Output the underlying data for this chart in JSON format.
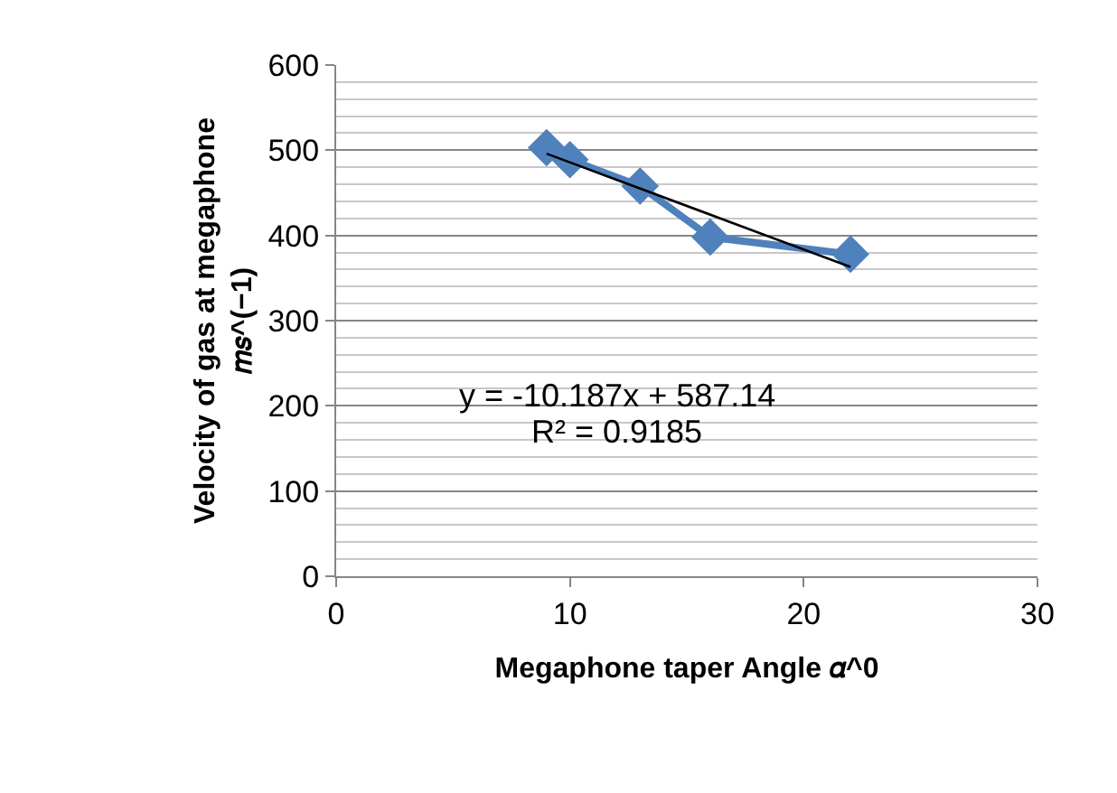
{
  "chart_data": {
    "type": "line",
    "xlabel": "Megaphone taper Angle 𝛼^0",
    "ylabel": "Velocity of gas at megaphone\n𝑚𝑠^(−1)",
    "series": [
      {
        "color": "#4f81bd",
        "x": [
          9,
          10,
          13,
          16,
          22
        ],
        "values": [
          503,
          489,
          458,
          398,
          378
        ],
        "marker": "diamond",
        "line_style": "solid"
      },
      {
        "color": "#000000",
        "x": [
          9,
          22
        ],
        "values": [
          496,
          363
        ],
        "marker": "none",
        "line_style": "solid"
      }
    ],
    "xlim": [
      0,
      30
    ],
    "xticks": [
      0,
      10,
      20,
      30
    ],
    "ylim": [
      0,
      600
    ],
    "yticks": [
      0,
      100,
      200,
      300,
      400,
      500,
      600
    ],
    "grid": "y",
    "annotations": [
      "y = -10.187x + 587.14",
      "R² = 0.9185"
    ]
  }
}
